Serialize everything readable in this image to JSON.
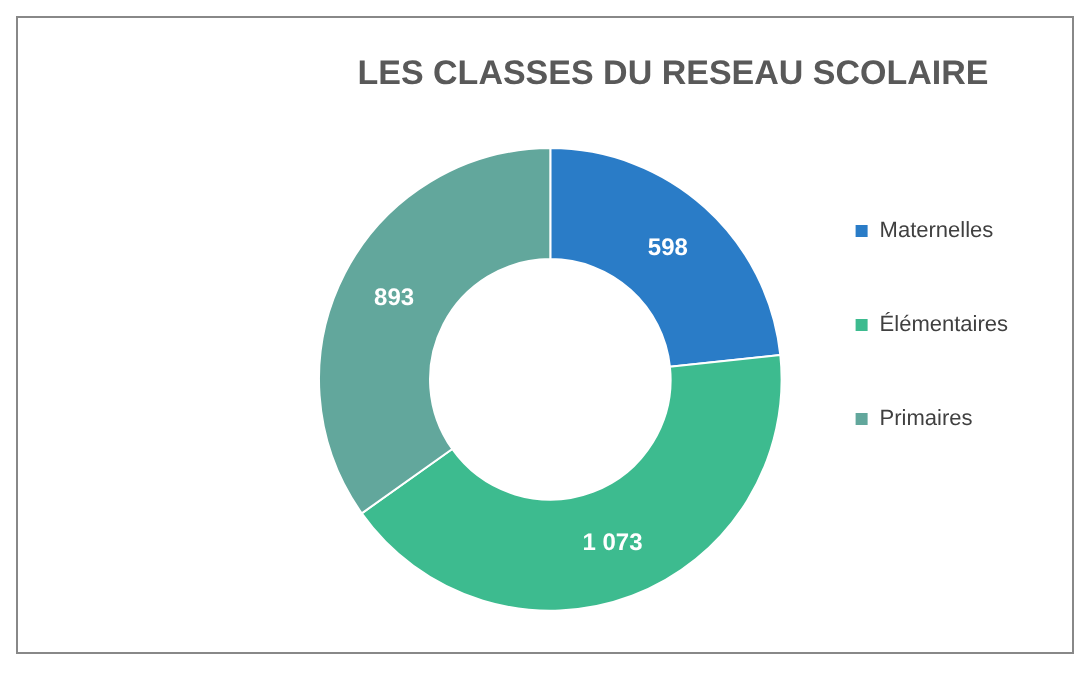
{
  "chart_data": {
    "type": "donut",
    "title": "LES CLASSES DU RESEAU SCOLAIRE",
    "categories": [
      "Maternelles",
      "Élémentaires",
      "Primaires"
    ],
    "values": [
      598,
      1073,
      893
    ],
    "value_labels": [
      "598",
      "1 073",
      "893"
    ],
    "colors": [
      "#2a7cc7",
      "#3dbb8f",
      "#62a79c"
    ],
    "legend": "right"
  }
}
